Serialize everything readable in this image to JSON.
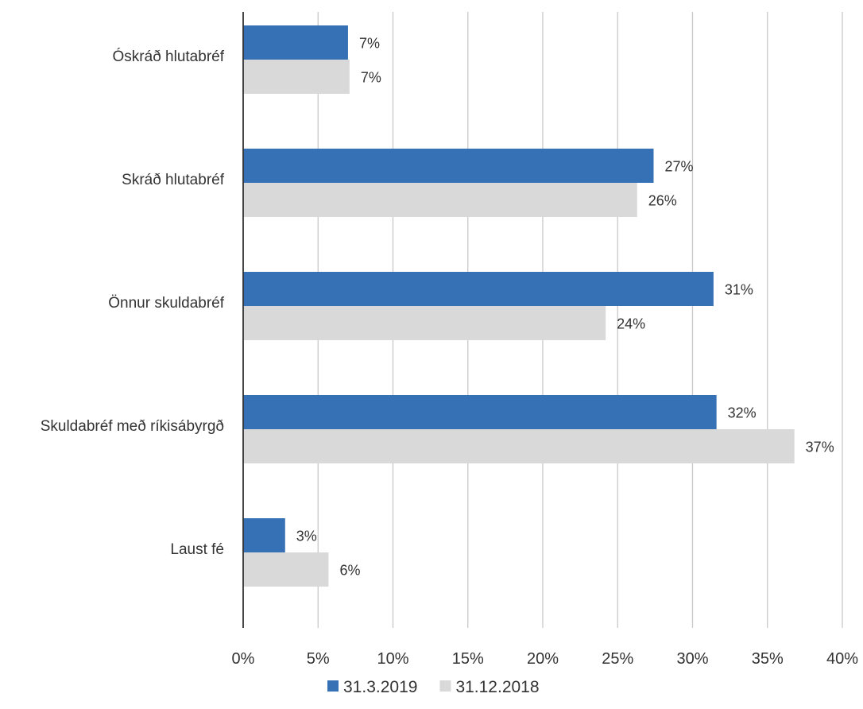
{
  "chart_data": {
    "type": "bar",
    "orientation": "horizontal",
    "categories": [
      "Óskráð hlutabréf",
      "Skráð hlutabréf",
      "Önnur skuldabréf",
      "Skuldabréf með ríkisábyrgð",
      "Laust fé"
    ],
    "series": [
      {
        "name": "31.3.2019",
        "color": "#3671b5",
        "values": [
          7.0,
          27.4,
          31.4,
          31.6,
          2.8
        ],
        "labels": [
          "7%",
          "27%",
          "31%",
          "32%",
          "3%"
        ]
      },
      {
        "name": "31.12.2018",
        "color": "#d9d9d9",
        "values": [
          7.1,
          26.3,
          24.2,
          36.8,
          5.7
        ],
        "labels": [
          "7%",
          "26%",
          "24%",
          "37%",
          "6%"
        ]
      }
    ],
    "xlim": [
      0,
      40
    ],
    "xticks": [
      0,
      5,
      10,
      15,
      20,
      25,
      30,
      35,
      40
    ],
    "xtick_labels": [
      "0%",
      "5%",
      "10%",
      "15%",
      "20%",
      "25%",
      "30%",
      "35%",
      "40%"
    ],
    "grid": true,
    "legend_position": "bottom-center",
    "title": "",
    "xlabel": "",
    "ylabel": ""
  }
}
